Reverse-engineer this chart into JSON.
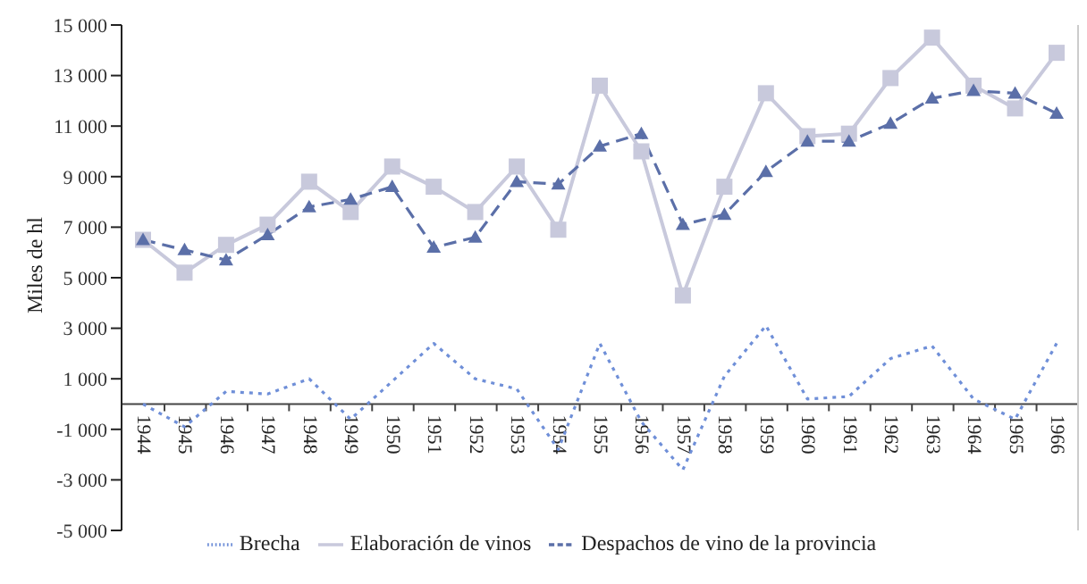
{
  "chart_data": {
    "type": "line",
    "ylabel": "Miles de hl",
    "categories": [
      "1944",
      "1945",
      "1946",
      "1947",
      "1948",
      "1949",
      "1950",
      "1951",
      "1952",
      "1953",
      "1954",
      "1955",
      "1956",
      "1957",
      "1958",
      "1959",
      "1960",
      "1961",
      "1962",
      "1963",
      "1964",
      "1965",
      "1966"
    ],
    "series": [
      {
        "name": "Brecha",
        "color": "#6f8fd8",
        "line_style": "dotted",
        "marker": "none",
        "values": [
          0,
          -900,
          500,
          400,
          1000,
          -600,
          900,
          2400,
          1000,
          600,
          -1800,
          2400,
          -700,
          -2600,
          1100,
          3100,
          200,
          300,
          1800,
          2300,
          200,
          -600,
          2400
        ]
      },
      {
        "name": "Elaboración de vinos",
        "color": "#c8c9dc",
        "line_style": "solid",
        "marker": "square",
        "values": [
          6500,
          5200,
          6300,
          7100,
          8800,
          7600,
          9400,
          8600,
          7600,
          9400,
          6900,
          12600,
          10000,
          4300,
          8600,
          12300,
          10600,
          10700,
          12900,
          14500,
          12600,
          11700,
          13900
        ]
      },
      {
        "name": "Despachos de vino de la provincia",
        "color": "#5b6fa8",
        "line_style": "dashed",
        "marker": "triangle",
        "values": [
          6500,
          6100,
          5700,
          6700,
          7800,
          8100,
          8600,
          6200,
          6600,
          8800,
          8700,
          10200,
          10700,
          7100,
          7500,
          9200,
          10400,
          10400,
          11100,
          12100,
          12400,
          12300,
          11500
        ]
      }
    ],
    "ylim": [
      -5000,
      15000
    ],
    "yticks": [
      {
        "value": -5000,
        "label": "‑5 000"
      },
      {
        "value": -3000,
        "label": "‑3 000"
      },
      {
        "value": -1000,
        "label": "‑1 000"
      },
      {
        "value": 1000,
        "label": "1 000"
      },
      {
        "value": 3000,
        "label": "3 000"
      },
      {
        "value": 5000,
        "label": "5 000"
      },
      {
        "value": 7000,
        "label": "7 000"
      },
      {
        "value": 9000,
        "label": "9 000"
      },
      {
        "value": 11000,
        "label": "11 000"
      },
      {
        "value": 13000,
        "label": "13 000"
      },
      {
        "value": 15000,
        "label": "15 000"
      }
    ],
    "grid": false,
    "legend": "bottom"
  }
}
